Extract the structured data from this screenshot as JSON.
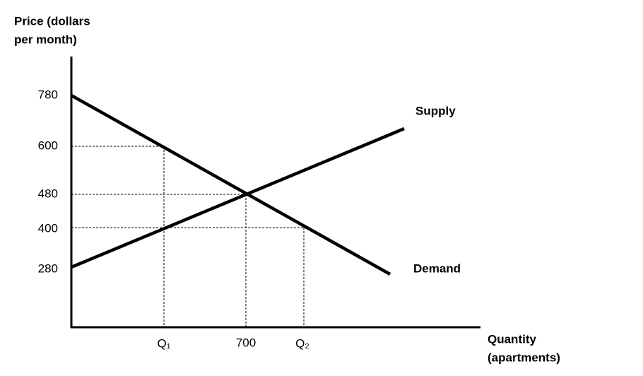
{
  "axes": {
    "y_label": [
      "Price (dollars",
      "per month)"
    ],
    "x_label": [
      "Quantity",
      "(apartments)"
    ]
  },
  "y_ticks": [
    "780",
    "600",
    "480",
    "400",
    "280"
  ],
  "x_ticks": [
    "Q₁",
    "700",
    "Q₂"
  ],
  "curves": {
    "supply": "Supply",
    "demand": "Demand"
  }
}
